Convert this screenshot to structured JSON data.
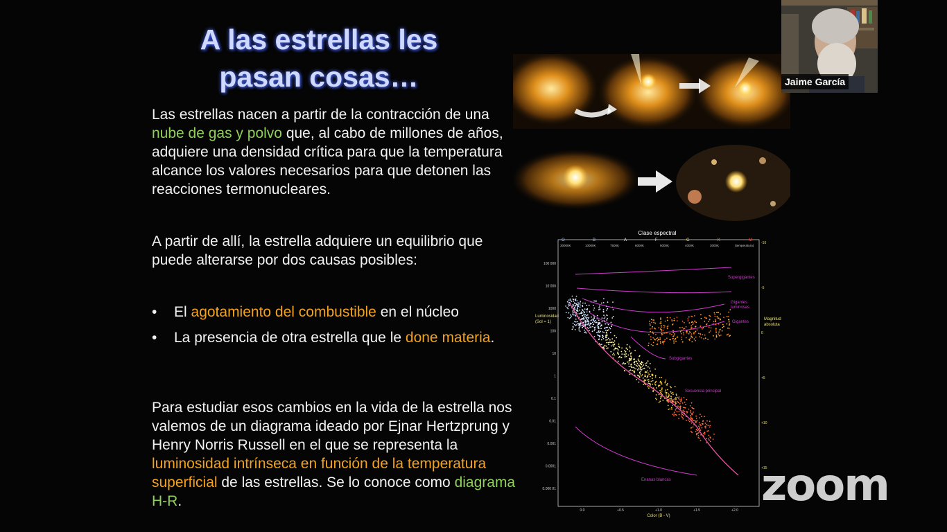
{
  "slide": {
    "title_line1": "A las estrellas les",
    "title_line2": "pasan cosas…",
    "p1_a": "Las estrellas nacen a partir de la contracción de una ",
    "p1_green": "nube de gas y polvo",
    "p1_b": " que, al cabo de millones de años, adquiere una densidad crítica para que la temperatura alcance los valores necesarios para que detonen las reacciones termonucleares.",
    "p2": "A partir de allí, la estrella adquiere un equilibrio que puede alterarse por dos causas posibles:",
    "b1_a": "El ",
    "b1_orange": "agotamiento del combustible",
    "b1_b": " en el núcleo",
    "b2_a": "La presencia de otra estrella que le ",
    "b2_orange": "done materia",
    "b2_b": ".",
    "p3_a": "Para estudiar esos cambios en la vida de la estrella nos valemos de un diagrama ideado por Ejnar Hertzprung y Henry Norris Russell en el que se representa la ",
    "p3_orange": "luminosidad intrínseca en función de la temperatura superficial",
    "p3_b": " de las estrellas. Se lo conoce como ",
    "p3_green": "diagrama H-R",
    "p3_c": "."
  },
  "hr": {
    "top_title": "Clase espectral",
    "spectral": [
      "O",
      "B",
      "A",
      "F",
      "G",
      "K",
      "M"
    ],
    "temps": [
      "30000K",
      "10000K",
      "7500K",
      "6000K",
      "5000K",
      "4000K",
      "3000K",
      "(temperatura)"
    ],
    "y_label1": "Luminosidad",
    "y_label2": "(Sol = 1)",
    "y_ticks": [
      "100 000",
      "10 000",
      "1000",
      "100",
      "10",
      "1",
      "0.1",
      "0.01",
      "0.001",
      "0.0001",
      "0.000 01"
    ],
    "r_label1": "Magnitud",
    "r_label2": "absoluta",
    "r_ticks": [
      "-10",
      "-5",
      "0",
      "+5",
      "+10",
      "+15"
    ],
    "x_ticks": [
      "0.0",
      "+0.5",
      "+1.0",
      "+1.5",
      "+2.0"
    ],
    "x_label": "Color (B - V)",
    "labels": {
      "supergiants": "Supergigantes",
      "bright_giants_1": "Gigantes",
      "bright_giants_2": "luminosas",
      "giants": "Gigantes",
      "subgiants": "Subgigantes",
      "main_seq": "Secuencia principal",
      "white_dwarfs": "Enanas blancas"
    }
  },
  "video": {
    "participant": "Jaime García"
  },
  "brand": {
    "logo": "zoom"
  }
}
